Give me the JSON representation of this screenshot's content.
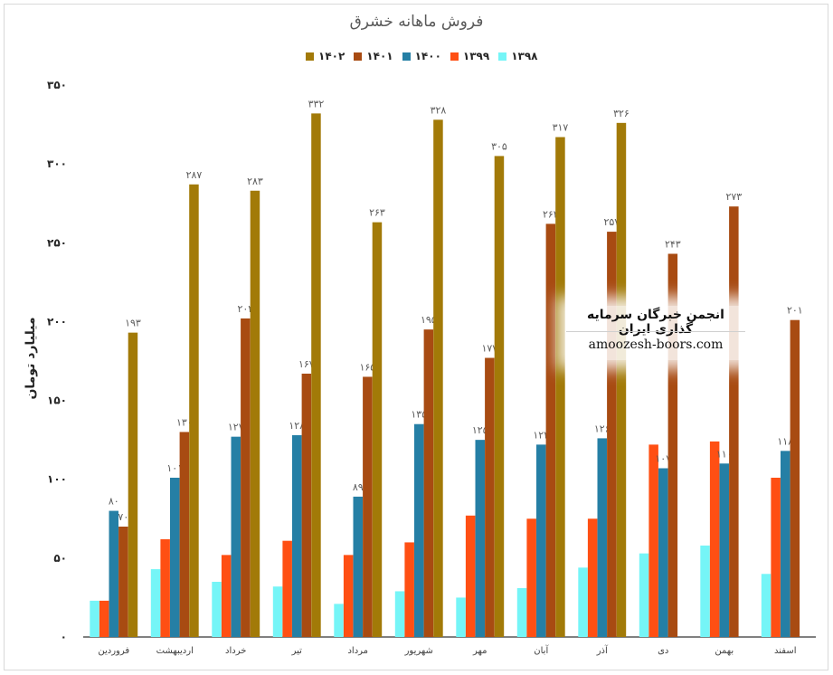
{
  "chart_data": {
    "type": "bar",
    "title": "فروش ماهانه خشرق",
    "ylabel": "میلیارد تومان",
    "xlabel": "",
    "ylim": [
      0,
      350
    ],
    "yticks": [
      0,
      50,
      100,
      150,
      200,
      250,
      300,
      350
    ],
    "ytick_labels": [
      "۰",
      "۵۰",
      "۱۰۰",
      "۱۵۰",
      "۲۰۰",
      "۲۵۰",
      "۳۰۰",
      "۳۵۰"
    ],
    "grid": false,
    "legend_position": "top",
    "categories": [
      "فروردین",
      "اردیبهشت",
      "خرداد",
      "تیر",
      "مرداد",
      "شهریور",
      "مهر",
      "آبان",
      "آذر",
      "دی",
      "بهمن",
      "اسفند"
    ],
    "series": [
      {
        "name": "۱۳۹۸",
        "color": "#75f5f7",
        "values": [
          23,
          43,
          35,
          32,
          21,
          29,
          25,
          31,
          44,
          53,
          58,
          40
        ],
        "labels": [
          "",
          "",
          "",
          "",
          "",
          "",
          "",
          "",
          "",
          "",
          "",
          ""
        ]
      },
      {
        "name": "۱۳۹۹",
        "color": "#ff4f13",
        "values": [
          23,
          62,
          52,
          61,
          52,
          60,
          77,
          75,
          75,
          122,
          124,
          101
        ],
        "labels": [
          "",
          "",
          "",
          "",
          "",
          "",
          "",
          "",
          "",
          "",
          "",
          ""
        ]
      },
      {
        "name": "۱۴۰۰",
        "color": "#257fa5",
        "values": [
          80,
          101,
          127,
          128,
          89,
          135,
          125,
          122,
          126,
          107,
          110,
          118
        ],
        "labels": [
          "۸۰",
          "۱۰۱",
          "۱۲۷",
          "۱۲۸",
          "۸۹",
          "۱۳۵",
          "۱۲۵",
          "۱۲۲",
          "۱۲۶",
          "۱۰۷",
          "۱۱۰",
          "۱۱۸"
        ]
      },
      {
        "name": "۱۴۰۱",
        "color": "#a84b12",
        "values": [
          70,
          130,
          202,
          167,
          165,
          195,
          177,
          262,
          257,
          243,
          273,
          201
        ],
        "labels": [
          "۷۰",
          "۱۳۰",
          "۲۰۲",
          "۱۶۷",
          "۱۶۵",
          "۱۹۵",
          "۱۷۷",
          "۲۶۲",
          "۲۵۷",
          "۲۴۳",
          "۲۷۳",
          "۲۰۱"
        ]
      },
      {
        "name": "۱۴۰۲",
        "color": "#a27a08",
        "values": [
          193,
          287,
          283,
          332,
          263,
          328,
          305,
          317,
          326,
          null,
          null,
          null
        ],
        "labels": [
          "۱۹۳",
          "۲۸۷",
          "۲۸۳",
          "۳۳۲",
          "۲۶۳",
          "۳۲۸",
          "۳۰۵",
          "۳۱۷",
          "۳۲۶",
          "",
          "",
          ""
        ]
      }
    ]
  },
  "watermark": {
    "title": "انجمن خبرگان سرمایه گذاری ایران",
    "url": "amoozesh-boors.com"
  }
}
